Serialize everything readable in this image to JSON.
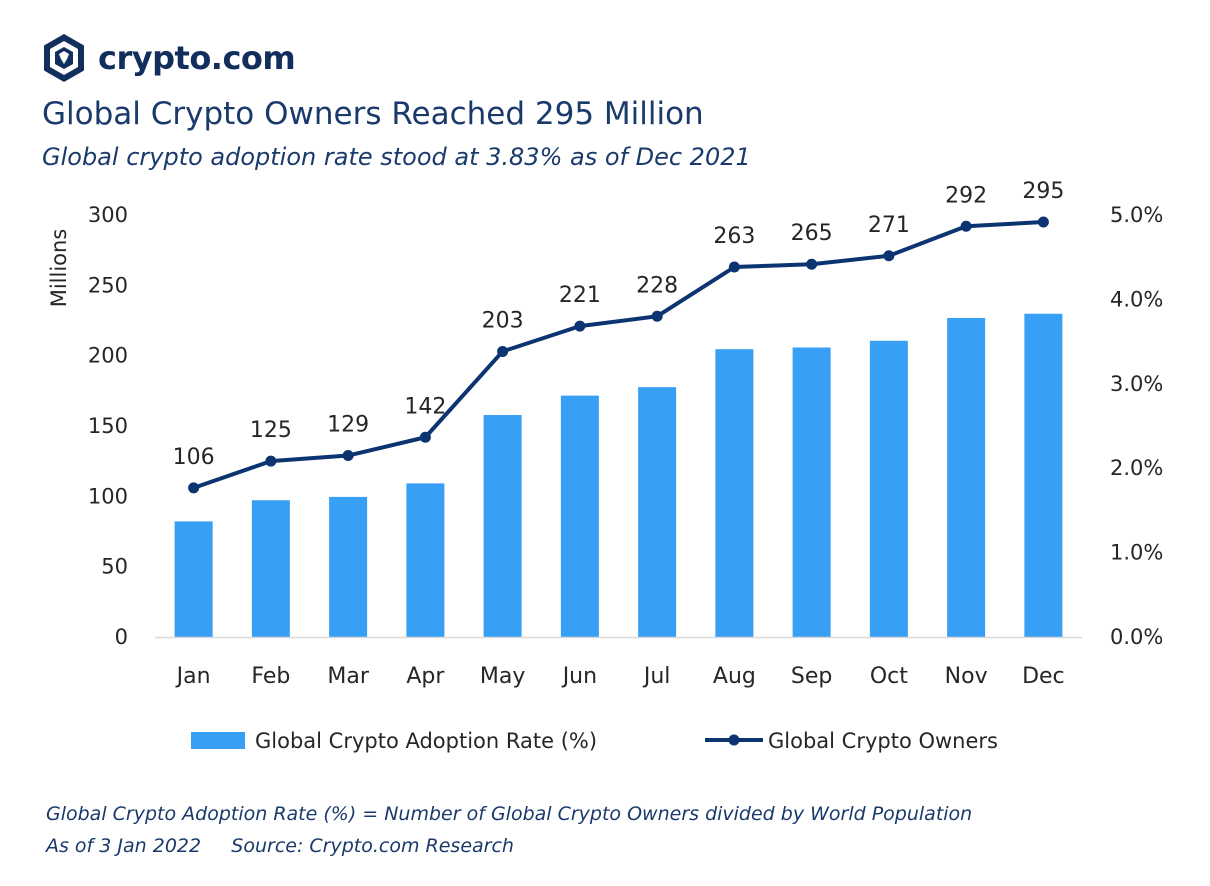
{
  "brand": {
    "name": "crypto.com",
    "logo_icon": "crypto-com-lion-shield"
  },
  "chart_data": {
    "type": "bar",
    "title": "Global Crypto Owners Reached 295 Million",
    "subtitle": "Global crypto adoption rate stood at 3.83% as of Dec 2021",
    "categories": [
      "Jan",
      "Feb",
      "Mar",
      "Apr",
      "May",
      "Jun",
      "Jul",
      "Aug",
      "Sep",
      "Oct",
      "Nov",
      "Dec"
    ],
    "series": [
      {
        "name": "Global Crypto Adoption Rate (%)",
        "type": "bar",
        "axis": "right",
        "values": [
          1.37,
          1.62,
          1.66,
          1.82,
          2.63,
          2.86,
          2.96,
          3.41,
          3.43,
          3.51,
          3.78,
          3.83
        ],
        "color": "#379ff4"
      },
      {
        "name": "Global Crypto Owners",
        "type": "line",
        "axis": "left",
        "values": [
          106,
          125,
          129,
          142,
          203,
          221,
          228,
          263,
          265,
          271,
          292,
          295
        ],
        "color": "#0b3471",
        "data_labels": [
          "106",
          "125",
          "129",
          "142",
          "203",
          "221",
          "228",
          "263",
          "265",
          "271",
          "292",
          "295"
        ]
      }
    ],
    "ylabel": "Millions",
    "ylim": [
      0,
      300
    ],
    "yticks": [
      "0",
      "50",
      "100",
      "150",
      "200",
      "250",
      "300"
    ],
    "y2lim": [
      0,
      5
    ],
    "y2ticks": [
      "0.0%",
      "1.0%",
      "2.0%",
      "3.0%",
      "4.0%",
      "5.0%"
    ],
    "grid": false,
    "legend_position": "bottom"
  },
  "footnotes": {
    "definition": "Global Crypto Adoption Rate (%) = Number of Global Crypto Owners divided by World Population",
    "source": "As of 3 Jan 2022     Source: Crypto.com Research"
  },
  "colors": {
    "bar": "#379ff4",
    "line": "#0b3471",
    "title": "#193a6b",
    "axis_text": "#262626",
    "baseline": "#d9d9d9"
  }
}
